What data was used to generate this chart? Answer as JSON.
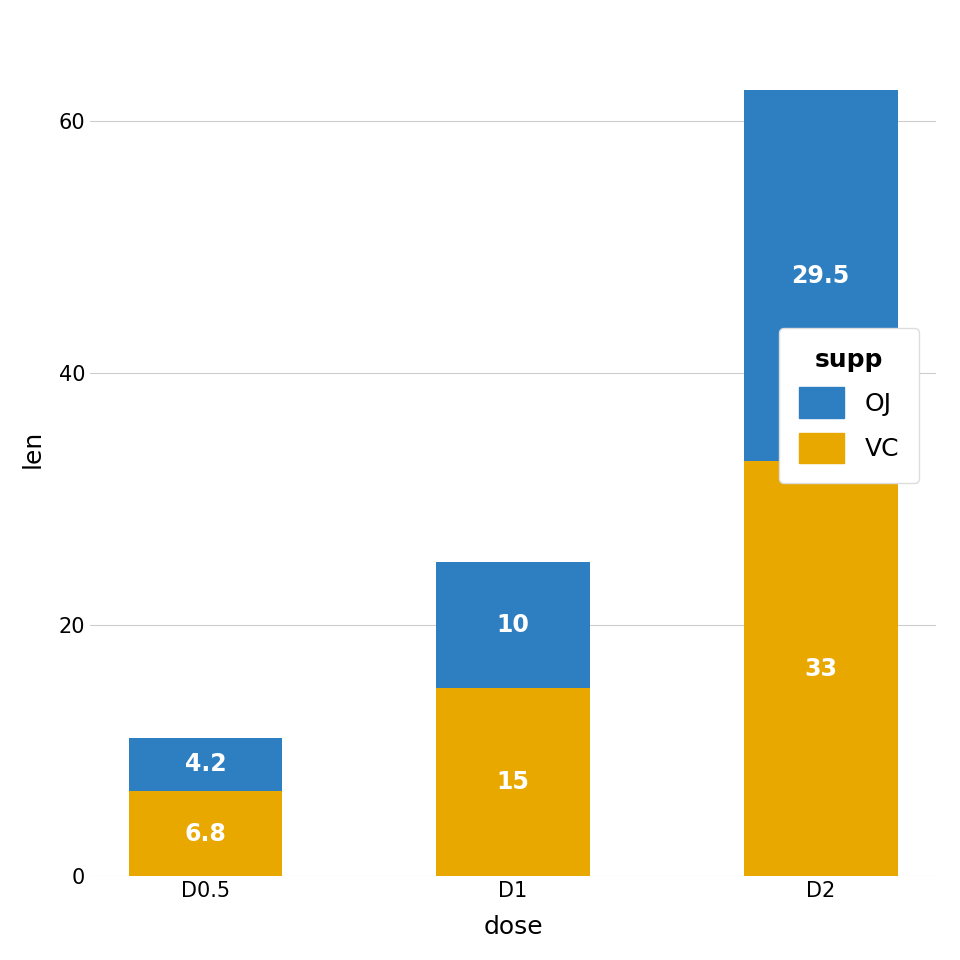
{
  "categories": [
    "D0.5",
    "D1",
    "D2"
  ],
  "oj_values": [
    4.2,
    10.0,
    29.5
  ],
  "vc_values": [
    6.8,
    15.0,
    33.0
  ],
  "oj_color": "#2E7EC2",
  "vc_color": "#E8A800",
  "oj_label": "4.2",
  "xlabel": "dose",
  "ylabel": "len",
  "ylim": [
    0,
    68
  ],
  "yticks": [
    0,
    20,
    40,
    60
  ],
  "bar_labels_vc": [
    "6.8",
    "15",
    "33"
  ],
  "bar_labels_oj": [
    "4.2",
    "10",
    "29.5"
  ],
  "label_color": "white",
  "label_fontsize": 17,
  "axis_fontsize": 18,
  "tick_fontsize": 15,
  "legend_title": "supp",
  "background_color": "#FFFFFF",
  "grid_color": "#CCCCCC",
  "bar_width": 0.5
}
